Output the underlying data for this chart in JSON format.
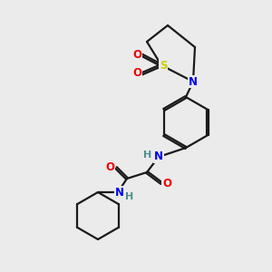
{
  "background_color": "#ebebeb",
  "bond_color": "#1a1a1a",
  "atom_colors": {
    "N": "#0000ee",
    "O": "#ee0000",
    "S": "#cccc00",
    "H": "#4f8f8f",
    "C": "#1a1a1a"
  },
  "figsize": [
    3.0,
    3.0
  ],
  "dpi": 100
}
